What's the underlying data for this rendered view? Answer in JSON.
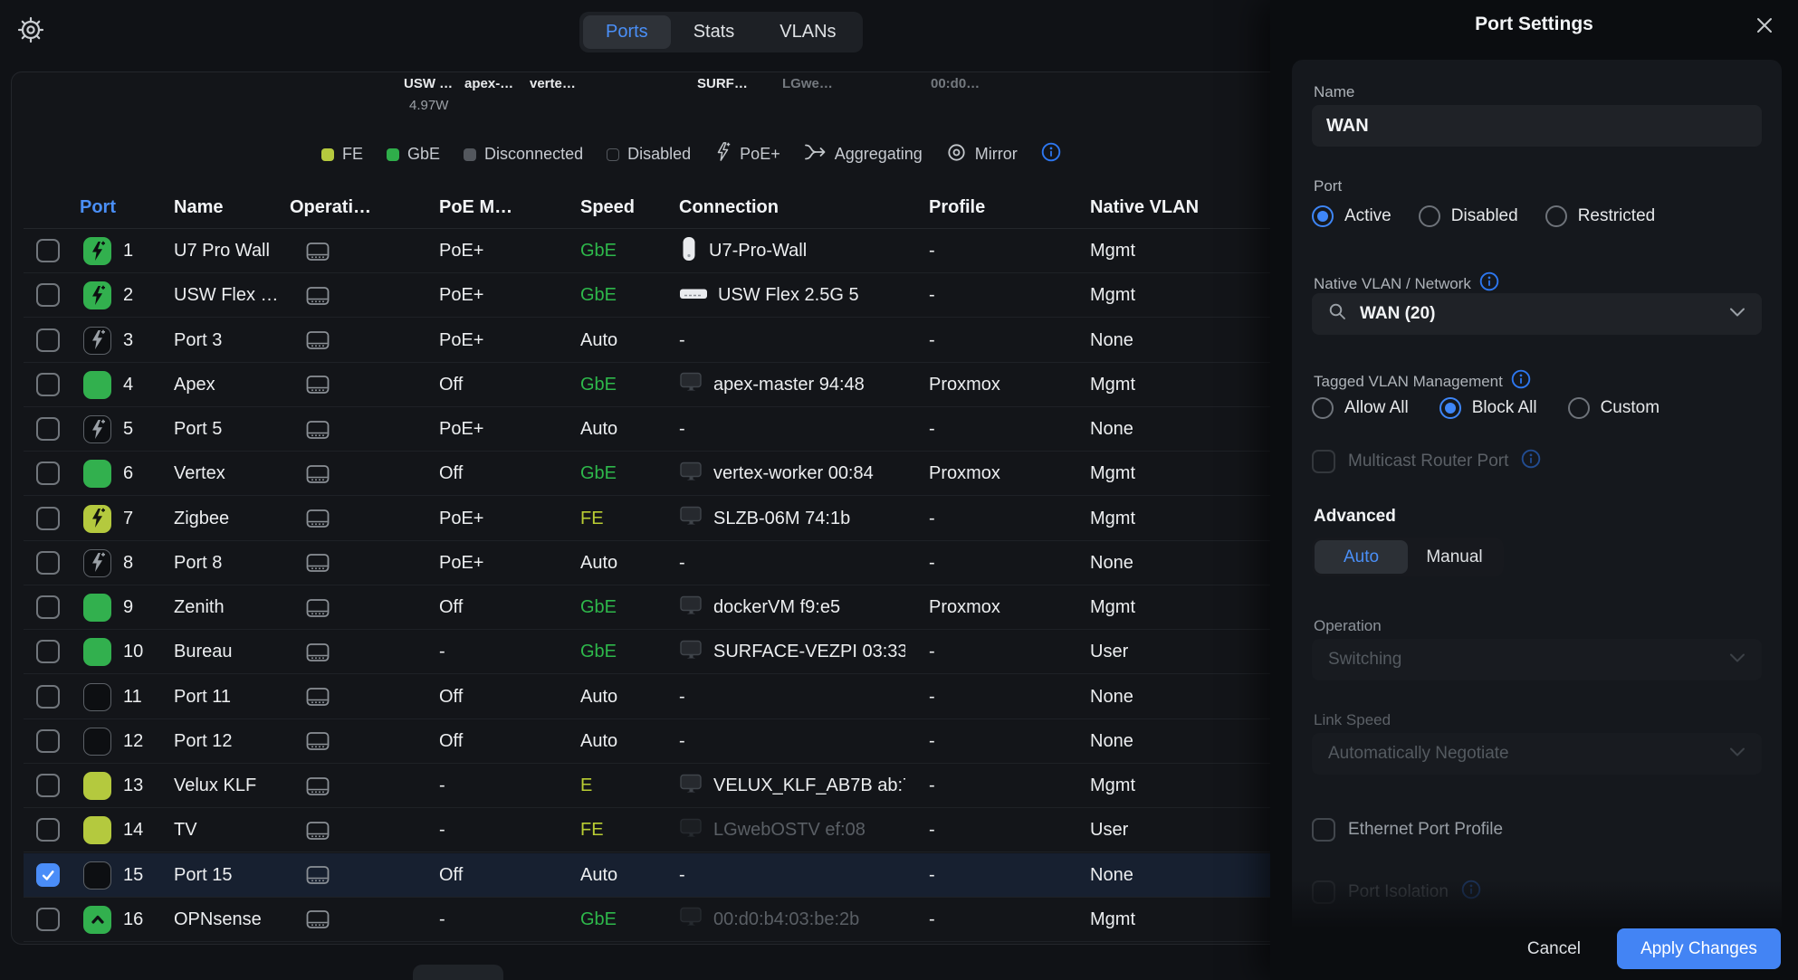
{
  "topbar": {
    "tabs": [
      {
        "label": "Ports",
        "active": true
      },
      {
        "label": "Stats",
        "active": false
      },
      {
        "label": "VLANs",
        "active": false
      }
    ]
  },
  "topology": {
    "devices": [
      {
        "label": "USW …",
        "dim": false
      },
      {
        "label": "apex-…",
        "dim": false
      },
      {
        "label": "verte…",
        "dim": false
      },
      {
        "label": "SURF…",
        "dim": false
      },
      {
        "label": "LGwe…",
        "dim": true
      },
      {
        "label": "00:d0…",
        "dim": true
      }
    ],
    "power_label": "4.97W"
  },
  "legend": {
    "items": [
      {
        "label": "FE",
        "kind": "swatch",
        "color": "#b5c93e"
      },
      {
        "label": "GbE",
        "kind": "swatch",
        "color": "#2fae4a"
      },
      {
        "label": "Disconnected",
        "kind": "swatch",
        "color": "#53575d"
      },
      {
        "label": "Disabled",
        "kind": "swatch-outline"
      },
      {
        "label": "PoE+",
        "kind": "bolt-icon"
      },
      {
        "label": "Aggregating",
        "kind": "aggregating-icon"
      },
      {
        "label": "Mirror",
        "kind": "mirror-icon"
      }
    ]
  },
  "table": {
    "headers": [
      {
        "label": "Port",
        "sorted": true
      },
      {
        "label": "Name"
      },
      {
        "label": "Operati…"
      },
      {
        "label": "PoE M…"
      },
      {
        "label": "Speed"
      },
      {
        "label": "Connection"
      },
      {
        "label": "Profile"
      },
      {
        "label": "Native VLAN"
      }
    ],
    "rows": [
      {
        "port": "1",
        "icon": "poe-green",
        "name": "U7 Pro Wall",
        "poe": "PoE+",
        "speed": "GbE",
        "speed_color": "green",
        "conn_icon": "ap",
        "conn_text": "U7-Pro-Wall",
        "conn_dim": false,
        "profile": "-",
        "vlan": "Mgmt",
        "selected": false
      },
      {
        "port": "2",
        "icon": "poe-green",
        "name": "USW Flex …",
        "poe": "PoE+",
        "speed": "GbE",
        "speed_color": "green",
        "conn_icon": "switch",
        "conn_text": "USW Flex 2.5G 5",
        "conn_dim": false,
        "profile": "-",
        "vlan": "Mgmt",
        "selected": false
      },
      {
        "port": "3",
        "icon": "poe-outline",
        "name": "Port 3",
        "poe": "PoE+",
        "speed": "Auto",
        "speed_color": "white",
        "conn_icon": null,
        "conn_text": "-",
        "conn_dim": false,
        "profile": "-",
        "vlan": "None",
        "selected": false
      },
      {
        "port": "4",
        "icon": "green",
        "name": "Apex",
        "poe": "Off",
        "speed": "GbE",
        "speed_color": "green",
        "conn_icon": "client",
        "conn_text": "apex-master 94:48",
        "conn_dim": false,
        "profile": "Proxmox",
        "vlan": "Mgmt",
        "selected": false
      },
      {
        "port": "5",
        "icon": "poe-outline",
        "name": "Port 5",
        "poe": "PoE+",
        "speed": "Auto",
        "speed_color": "white",
        "conn_icon": null,
        "conn_text": "-",
        "conn_dim": false,
        "profile": "-",
        "vlan": "None",
        "selected": false
      },
      {
        "port": "6",
        "icon": "green",
        "name": "Vertex",
        "poe": "Off",
        "speed": "GbE",
        "speed_color": "green",
        "conn_icon": "client",
        "conn_text": "vertex-worker 00:84",
        "conn_dim": false,
        "profile": "Proxmox",
        "vlan": "Mgmt",
        "selected": false
      },
      {
        "port": "7",
        "icon": "poe-yellow",
        "name": "Zigbee",
        "poe": "PoE+",
        "speed": "FE",
        "speed_color": "yellow",
        "conn_icon": "client",
        "conn_text": "SLZB-06M 74:1b",
        "conn_dim": false,
        "profile": "-",
        "vlan": "Mgmt",
        "selected": false
      },
      {
        "port": "8",
        "icon": "poe-outline",
        "name": "Port 8",
        "poe": "PoE+",
        "speed": "Auto",
        "speed_color": "white",
        "conn_icon": null,
        "conn_text": "-",
        "conn_dim": false,
        "profile": "-",
        "vlan": "None",
        "selected": false
      },
      {
        "port": "9",
        "icon": "green",
        "name": "Zenith",
        "poe": "Off",
        "speed": "GbE",
        "speed_color": "green",
        "conn_icon": "client",
        "conn_text": "dockerVM f9:e5",
        "conn_dim": false,
        "profile": "Proxmox",
        "vlan": "Mgmt",
        "selected": false
      },
      {
        "port": "10",
        "icon": "green",
        "name": "Bureau",
        "poe": "-",
        "speed": "GbE",
        "speed_color": "green",
        "conn_icon": "client",
        "conn_text": "SURFACE-VEZPI 03:33",
        "conn_dim": false,
        "profile": "-",
        "vlan": "User",
        "selected": false
      },
      {
        "port": "11",
        "icon": "outline",
        "name": "Port 11",
        "poe": "Off",
        "speed": "Auto",
        "speed_color": "white",
        "conn_icon": null,
        "conn_text": "-",
        "conn_dim": false,
        "profile": "-",
        "vlan": "None",
        "selected": false
      },
      {
        "port": "12",
        "icon": "outline",
        "name": "Port 12",
        "poe": "Off",
        "speed": "Auto",
        "speed_color": "white",
        "conn_icon": null,
        "conn_text": "-",
        "conn_dim": false,
        "profile": "-",
        "vlan": "None",
        "selected": false
      },
      {
        "port": "13",
        "icon": "yellow",
        "name": "Velux KLF",
        "poe": "-",
        "speed": "E",
        "speed_color": "yellow",
        "conn_icon": "client",
        "conn_text": "VELUX_KLF_AB7B ab:7",
        "conn_dim": false,
        "profile": "-",
        "vlan": "Mgmt",
        "selected": false
      },
      {
        "port": "14",
        "icon": "yellow",
        "name": "TV",
        "poe": "-",
        "speed": "FE",
        "speed_color": "yellow",
        "conn_icon": "client",
        "conn_text": "LGwebOSTV ef:08",
        "conn_dim": true,
        "profile": "-",
        "vlan": "User",
        "selected": false
      },
      {
        "port": "15",
        "icon": "outline",
        "name": "Port 15",
        "poe": "Off",
        "speed": "Auto",
        "speed_color": "white",
        "conn_icon": null,
        "conn_text": "-",
        "conn_dim": false,
        "profile": "-",
        "vlan": "None",
        "selected": true
      },
      {
        "port": "16",
        "icon": "uplink",
        "name": "OPNsense",
        "poe": "-",
        "speed": "GbE",
        "speed_color": "green",
        "conn_icon": "client",
        "conn_text": "00:d0:b4:03:be:2b",
        "conn_dim": true,
        "profile": "-",
        "vlan": "Mgmt",
        "selected": false
      }
    ]
  },
  "panel": {
    "title": "Port Settings",
    "name_label": "Name",
    "name_value": "WAN",
    "port_label": "Port",
    "port_state_options": [
      {
        "label": "Active",
        "selected": true
      },
      {
        "label": "Disabled",
        "selected": false
      },
      {
        "label": "Restricted",
        "selected": false
      }
    ],
    "native_vlan_label": "Native VLAN / Network",
    "native_vlan_value": "WAN (20)",
    "tagged_vlan_label": "Tagged VLAN Management",
    "tagged_vlan_options": [
      {
        "label": "Allow All",
        "selected": false
      },
      {
        "label": "Block All",
        "selected": true
      },
      {
        "label": "Custom",
        "selected": false
      }
    ],
    "multicast_label": "Multicast Router Port",
    "advanced_label": "Advanced",
    "mode_tabs": [
      {
        "label": "Auto",
        "active": true
      },
      {
        "label": "Manual",
        "active": false
      }
    ],
    "operation_label": "Operation",
    "operation_value": "Switching",
    "link_speed_label": "Link Speed",
    "link_speed_value": "Automatically Negotiate",
    "ethernet_profile_label": "Ethernet Port Profile",
    "port_isolation_label": "Port Isolation",
    "cancel_label": "Cancel",
    "apply_label": "Apply Changes"
  },
  "colors": {
    "accent_blue": "#4a8ff7",
    "green": "#2fae4a",
    "yellow_green": "#b5c93e",
    "apply_button": "#4384f4"
  }
}
